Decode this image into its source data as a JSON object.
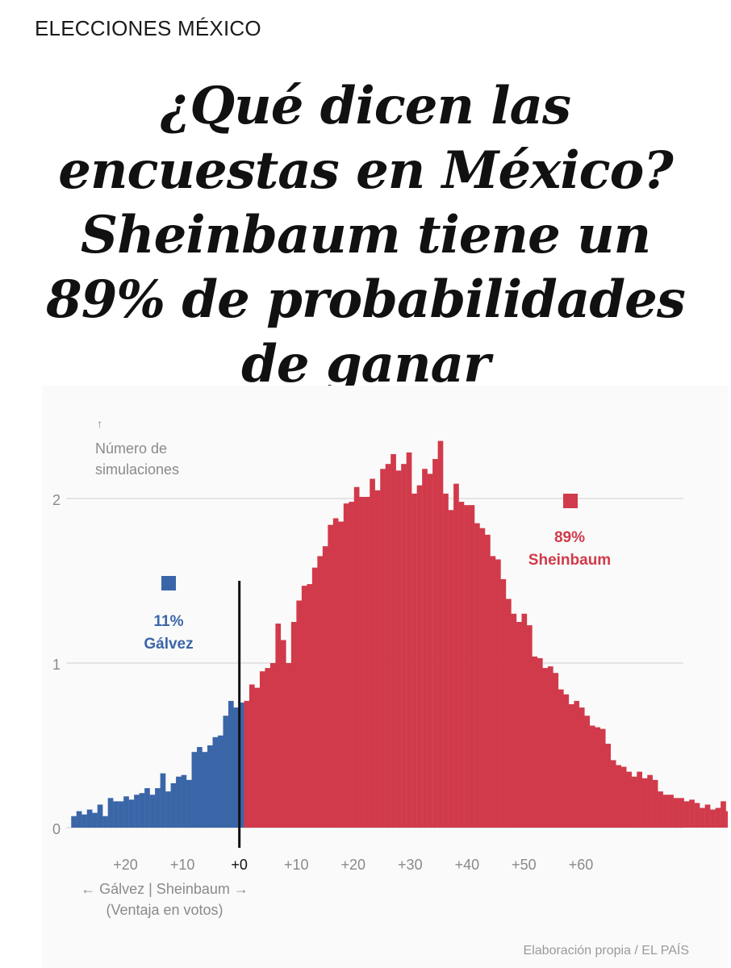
{
  "header": {
    "section": "ELECCIONES MÉXICO",
    "title_lines": [
      "¿Qué dicen las",
      "encuestas en México?",
      "Sheinbaum tiene un",
      "89% de probabilidades",
      "de ganar"
    ]
  },
  "colors": {
    "galvez": "#3a66a8",
    "sheinbaum": "#d13a4a",
    "grid": "#dddddd",
    "zero_line": "#111111",
    "axis_text": "#8a8a8a"
  },
  "chart_data": {
    "type": "bar",
    "subtype": "histogram",
    "y_axis_label": {
      "arrow": "↑",
      "lines": [
        "Número de",
        "simulaciones"
      ]
    },
    "y_ticks": [
      0,
      1,
      2
    ],
    "ylim": [
      0,
      2.4
    ],
    "x_ticks": [
      {
        "value": -20,
        "label": "+20"
      },
      {
        "value": -10,
        "label": "+10"
      },
      {
        "value": 0,
        "label": "+0"
      },
      {
        "value": 10,
        "label": "+10"
      },
      {
        "value": 20,
        "label": "+20"
      },
      {
        "value": 30,
        "label": "+30"
      },
      {
        "value": 40,
        "label": "+40"
      },
      {
        "value": 50,
        "label": "+50"
      },
      {
        "value": 60,
        "label": "+60"
      }
    ],
    "xlim": [
      -30,
      78
    ],
    "x_axis_label": {
      "line1": "← Gálvez | Sheinbaum →",
      "line2": "(Ventaja en votos)"
    },
    "grid": true,
    "bin_width": 0.92,
    "x_start": -29.54,
    "values": [
      0.07,
      0.1,
      0.08,
      0.11,
      0.09,
      0.14,
      0.07,
      0.18,
      0.16,
      0.16,
      0.19,
      0.17,
      0.2,
      0.21,
      0.24,
      0.2,
      0.24,
      0.33,
      0.22,
      0.27,
      0.31,
      0.32,
      0.29,
      0.46,
      0.49,
      0.46,
      0.5,
      0.55,
      0.56,
      0.68,
      0.77,
      0.73,
      0.76,
      0.77,
      0.87,
      0.85,
      0.95,
      0.97,
      1.0,
      1.24,
      1.14,
      1.0,
      1.25,
      1.38,
      1.47,
      1.48,
      1.58,
      1.65,
      1.71,
      1.84,
      1.88,
      1.86,
      1.97,
      1.98,
      2.07,
      2.01,
      2.01,
      2.12,
      2.05,
      2.18,
      2.21,
      2.27,
      2.17,
      2.21,
      2.28,
      2.03,
      2.08,
      2.18,
      2.15,
      2.24,
      2.35,
      2.03,
      1.93,
      2.09,
      1.98,
      1.96,
      1.96,
      1.85,
      1.82,
      1.78,
      1.65,
      1.63,
      1.51,
      1.39,
      1.3,
      1.25,
      1.3,
      1.23,
      1.04,
      1.03,
      0.97,
      0.98,
      0.94,
      0.84,
      0.81,
      0.75,
      0.77,
      0.73,
      0.68,
      0.62,
      0.61,
      0.6,
      0.51,
      0.41,
      0.38,
      0.37,
      0.34,
      0.31,
      0.34,
      0.3,
      0.32,
      0.29,
      0.22,
      0.2,
      0.2,
      0.18,
      0.18,
      0.16,
      0.17,
      0.15,
      0.12,
      0.14,
      0.11,
      0.12,
      0.16,
      0.1,
      0.08,
      0.07,
      0.06
    ],
    "series": [
      {
        "name": "Gálvez",
        "share_label": "11%",
        "share": 0.11
      },
      {
        "name": "Sheinbaum",
        "share_label": "89%",
        "share": 0.89
      }
    ]
  },
  "footer": {
    "credit": "Elaboración propia / EL PAÍS"
  }
}
